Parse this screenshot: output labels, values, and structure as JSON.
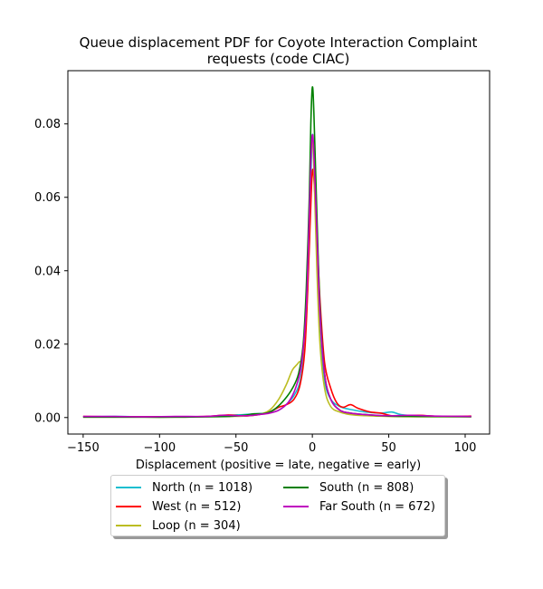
{
  "chart_data": {
    "type": "line",
    "title_line1": "Queue displacement PDF for Coyote Interaction Complaint",
    "title_line2": "requests (code CIAC)",
    "xlabel": "Displacement (positive = late, negative = early)",
    "ylabel": "",
    "xlim": [
      -160,
      116
    ],
    "ylim": [
      -0.0045,
      0.0945
    ],
    "x_ticks": [
      -150,
      -100,
      -50,
      0,
      50,
      100
    ],
    "x_tick_labels": [
      "−150",
      "−100",
      "−50",
      "0",
      "50",
      "100"
    ],
    "y_ticks": [
      0.0,
      0.02,
      0.04,
      0.06,
      0.08
    ],
    "y_tick_labels": [
      "0.00",
      "0.02",
      "0.04",
      "0.06",
      "0.08"
    ],
    "grid": false,
    "legend_position": "below-center",
    "series": [
      {
        "name": "North (n = 1018)",
        "color": "#17becf",
        "points": [
          [
            -150,
            0.0002
          ],
          [
            -130,
            0.0003
          ],
          [
            -110,
            0.0002
          ],
          [
            -90,
            0.0002
          ],
          [
            -70,
            0.0002
          ],
          [
            -55,
            0.0006
          ],
          [
            -45,
            0.0008
          ],
          [
            -38,
            0.001
          ],
          [
            -30,
            0.0012
          ],
          [
            -22,
            0.002
          ],
          [
            -16,
            0.004
          ],
          [
            -12,
            0.006
          ],
          [
            -8,
            0.01
          ],
          [
            -5,
            0.02
          ],
          [
            -3,
            0.04
          ],
          [
            -1,
            0.065
          ],
          [
            0,
            0.077
          ],
          [
            1,
            0.07
          ],
          [
            3,
            0.045
          ],
          [
            5,
            0.022
          ],
          [
            8,
            0.01
          ],
          [
            12,
            0.005
          ],
          [
            18,
            0.003
          ],
          [
            25,
            0.0022
          ],
          [
            35,
            0.0015
          ],
          [
            45,
            0.0012
          ],
          [
            52,
            0.0015
          ],
          [
            58,
            0.0008
          ],
          [
            70,
            0.0004
          ],
          [
            85,
            0.0003
          ],
          [
            104,
            0.0003
          ]
        ]
      },
      {
        "name": "West (n = 512)",
        "color": "#ff0000",
        "points": [
          [
            -150,
            0.0003
          ],
          [
            -130,
            0.0002
          ],
          [
            -110,
            0.0002
          ],
          [
            -90,
            0.0002
          ],
          [
            -70,
            0.0003
          ],
          [
            -55,
            0.0007
          ],
          [
            -45,
            0.0004
          ],
          [
            -35,
            0.0008
          ],
          [
            -28,
            0.0015
          ],
          [
            -22,
            0.0028
          ],
          [
            -17,
            0.0035
          ],
          [
            -12,
            0.005
          ],
          [
            -8,
            0.009
          ],
          [
            -5,
            0.018
          ],
          [
            -3,
            0.035
          ],
          [
            -1,
            0.058
          ],
          [
            0,
            0.067
          ],
          [
            1,
            0.065
          ],
          [
            3,
            0.05
          ],
          [
            5,
            0.032
          ],
          [
            8,
            0.015
          ],
          [
            12,
            0.008
          ],
          [
            16,
            0.004
          ],
          [
            20,
            0.0028
          ],
          [
            25,
            0.0035
          ],
          [
            30,
            0.0025
          ],
          [
            38,
            0.0015
          ],
          [
            45,
            0.0012
          ],
          [
            52,
            0.0005
          ],
          [
            60,
            0.0005
          ],
          [
            70,
            0.0006
          ],
          [
            85,
            0.0003
          ],
          [
            104,
            0.0004
          ]
        ]
      },
      {
        "name": "Loop (n = 304)",
        "color": "#bcbd22",
        "points": [
          [
            -150,
            0.0001
          ],
          [
            -130,
            0.0001
          ],
          [
            -110,
            0.0001
          ],
          [
            -90,
            0.0001
          ],
          [
            -70,
            0.0002
          ],
          [
            -55,
            0.0003
          ],
          [
            -45,
            0.0004
          ],
          [
            -35,
            0.0008
          ],
          [
            -28,
            0.002
          ],
          [
            -22,
            0.005
          ],
          [
            -17,
            0.009
          ],
          [
            -13,
            0.013
          ],
          [
            -9,
            0.015
          ],
          [
            -6,
            0.018
          ],
          [
            -3,
            0.04
          ],
          [
            -1,
            0.07
          ],
          [
            0,
            0.076
          ],
          [
            1,
            0.068
          ],
          [
            3,
            0.04
          ],
          [
            5,
            0.02
          ],
          [
            8,
            0.008
          ],
          [
            12,
            0.003
          ],
          [
            18,
            0.0015
          ],
          [
            25,
            0.0008
          ],
          [
            35,
            0.0005
          ],
          [
            50,
            0.0003
          ],
          [
            70,
            0.0002
          ],
          [
            104,
            0.0002
          ]
        ]
      },
      {
        "name": "South (n = 808)",
        "color": "#008000",
        "points": [
          [
            -150,
            0.0001
          ],
          [
            -130,
            0.0001
          ],
          [
            -110,
            0.0001
          ],
          [
            -90,
            0.0001
          ],
          [
            -70,
            0.0002
          ],
          [
            -55,
            0.0003
          ],
          [
            -45,
            0.0006
          ],
          [
            -38,
            0.001
          ],
          [
            -30,
            0.0012
          ],
          [
            -24,
            0.0025
          ],
          [
            -18,
            0.005
          ],
          [
            -13,
            0.008
          ],
          [
            -9,
            0.012
          ],
          [
            -6,
            0.02
          ],
          [
            -4,
            0.035
          ],
          [
            -2,
            0.06
          ],
          [
            -1,
            0.08
          ],
          [
            0,
            0.09
          ],
          [
            1,
            0.083
          ],
          [
            3,
            0.055
          ],
          [
            5,
            0.03
          ],
          [
            8,
            0.012
          ],
          [
            12,
            0.005
          ],
          [
            18,
            0.002
          ],
          [
            25,
            0.0012
          ],
          [
            35,
            0.0008
          ],
          [
            50,
            0.0004
          ],
          [
            70,
            0.0003
          ],
          [
            104,
            0.0002
          ]
        ]
      },
      {
        "name": "Far South (n = 672)",
        "color": "#bf00bf",
        "points": [
          [
            -150,
            0.0003
          ],
          [
            -130,
            0.0003
          ],
          [
            -110,
            0.0002
          ],
          [
            -90,
            0.0003
          ],
          [
            -70,
            0.0003
          ],
          [
            -58,
            0.0006
          ],
          [
            -50,
            0.0005
          ],
          [
            -42,
            0.0005
          ],
          [
            -35,
            0.0008
          ],
          [
            -28,
            0.0012
          ],
          [
            -22,
            0.002
          ],
          [
            -16,
            0.004
          ],
          [
            -11,
            0.008
          ],
          [
            -7,
            0.015
          ],
          [
            -4,
            0.03
          ],
          [
            -2,
            0.055
          ],
          [
            -1,
            0.07
          ],
          [
            0,
            0.077
          ],
          [
            1,
            0.072
          ],
          [
            3,
            0.05
          ],
          [
            5,
            0.028
          ],
          [
            8,
            0.012
          ],
          [
            12,
            0.005
          ],
          [
            18,
            0.002
          ],
          [
            25,
            0.0012
          ],
          [
            35,
            0.0008
          ],
          [
            50,
            0.0005
          ],
          [
            65,
            0.0006
          ],
          [
            80,
            0.0004
          ],
          [
            104,
            0.0003
          ]
        ]
      }
    ]
  }
}
